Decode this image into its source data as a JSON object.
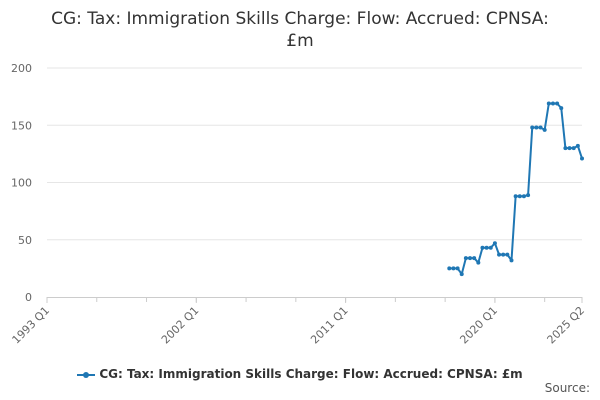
{
  "chart_data": {
    "type": "line",
    "title_lines": [
      "CG: Tax: Immigration Skills Charge: Flow: Accrued: CPNSA:",
      "£m"
    ],
    "xlabel": "",
    "ylabel": "",
    "ylim": [
      0,
      200
    ],
    "y_ticks": [
      0,
      50,
      100,
      150,
      200
    ],
    "x_range": [
      "1993 Q1",
      "2025 Q2"
    ],
    "x_ticks": [
      "1993 Q1",
      "2002 Q1",
      "2011 Q1",
      "2020 Q1",
      "2025 Q2"
    ],
    "grid": "horizontal",
    "legend_position": "bottom",
    "series": [
      {
        "name": "CG: Tax: Immigration Skills Charge: Flow: Accrued: CPNSA: £m",
        "color": "#1f77b4",
        "points": [
          [
            "2017 Q2",
            25
          ],
          [
            "2017 Q3",
            25
          ],
          [
            "2017 Q4",
            25
          ],
          [
            "2018 Q1",
            20
          ],
          [
            "2018 Q2",
            34
          ],
          [
            "2018 Q3",
            34
          ],
          [
            "2018 Q4",
            34
          ],
          [
            "2019 Q1",
            30
          ],
          [
            "2019 Q2",
            43
          ],
          [
            "2019 Q3",
            43
          ],
          [
            "2019 Q4",
            43
          ],
          [
            "2020 Q1",
            47
          ],
          [
            "2020 Q2",
            37
          ],
          [
            "2020 Q3",
            37
          ],
          [
            "2020 Q4",
            37
          ],
          [
            "2021 Q1",
            32
          ],
          [
            "2021 Q2",
            88
          ],
          [
            "2021 Q3",
            88
          ],
          [
            "2021 Q4",
            88
          ],
          [
            "2022 Q1",
            89
          ],
          [
            "2022 Q2",
            148
          ],
          [
            "2022 Q3",
            148
          ],
          [
            "2022 Q4",
            148
          ],
          [
            "2023 Q1",
            146
          ],
          [
            "2023 Q2",
            169
          ],
          [
            "2023 Q3",
            169
          ],
          [
            "2023 Q4",
            169
          ],
          [
            "2024 Q1",
            165
          ],
          [
            "2024 Q2",
            130
          ],
          [
            "2024 Q3",
            130
          ],
          [
            "2024 Q4",
            130
          ],
          [
            "2025 Q1",
            132
          ],
          [
            "2025 Q2",
            121
          ]
        ]
      }
    ]
  },
  "legend": {
    "label": "CG: Tax: Immigration Skills Charge: Flow: Accrued: CPNSA: £m"
  },
  "source": {
    "label": "Source:"
  }
}
